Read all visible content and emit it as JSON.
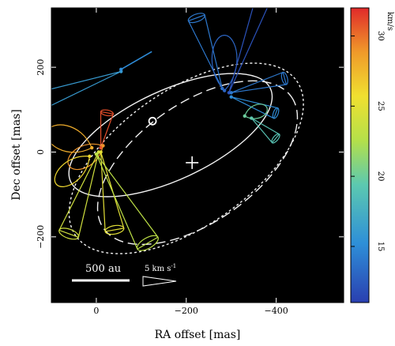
{
  "chart_data": {
    "type": "scatter",
    "xlabel": "RA offset [mas]",
    "ylabel": "Dec offset [mas]",
    "xlim": [
      100,
      -550
    ],
    "ylim": [
      -355,
      340
    ],
    "x_ticks": [
      {
        "value": 0,
        "label": "0"
      },
      {
        "value": -200,
        "label": "−200"
      },
      {
        "value": -400,
        "label": "−400"
      }
    ],
    "y_ticks": [
      {
        "value": 200,
        "label": "200"
      },
      {
        "value": 0,
        "label": "0"
      },
      {
        "value": -200,
        "label": "−200"
      }
    ],
    "colorbar": {
      "unit": "km/s",
      "min": 11,
      "max": 32,
      "ticks": [
        {
          "value": 30,
          "label": "30"
        },
        {
          "value": 25,
          "label": "25"
        },
        {
          "value": 20,
          "label": "20"
        },
        {
          "value": 15,
          "label": "15"
        }
      ]
    },
    "scale_bar": {
      "label": "500 au",
      "length_mas": 130
    },
    "velocity_key": {
      "label": "5 km s",
      "superscript": "-1"
    },
    "markers": [
      {
        "kind": "circle",
        "x": -125,
        "y": 73
      },
      {
        "kind": "plus",
        "x": -213,
        "y": -25
      }
    ],
    "ellipses": [
      {
        "style": "solid",
        "cx": -165,
        "cy": 40,
        "rx": 245,
        "ry": 105,
        "angle_deg": -25
      },
      {
        "style": "dashed",
        "cx": -225,
        "cy": -25,
        "rx": 255,
        "ry": 140,
        "angle_deg": -35
      },
      {
        "style": "dotted",
        "cx": -200,
        "cy": -15,
        "rx": 300,
        "ry": 160,
        "angle_deg": -35
      }
    ],
    "features": [
      {
        "x": -55,
        "y": 190,
        "vel": 16,
        "shape": "cone",
        "angle": 200,
        "len": 145,
        "width": 30
      },
      {
        "x": -55,
        "y": 195,
        "vel": 15,
        "shape": "line",
        "angle": 30,
        "len": 45
      },
      {
        "x": -280,
        "y": 150,
        "vel": 14,
        "shape": "cone",
        "angle": 110,
        "len": 95,
        "width": 22
      },
      {
        "x": -285,
        "y": 145,
        "vel": 13,
        "shape": "loop",
        "angle": 90,
        "len": 70,
        "width": 26
      },
      {
        "x": -295,
        "y": 140,
        "vel": 12,
        "shape": "cone",
        "angle": 70,
        "len": 120,
        "width": 18
      },
      {
        "x": -300,
        "y": 140,
        "vel": 14,
        "shape": "cone",
        "angle": 15,
        "len": 70,
        "width": 16
      },
      {
        "x": -300,
        "y": 130,
        "vel": 15,
        "shape": "cone",
        "angle": 340,
        "len": 60,
        "width": 14
      },
      {
        "x": -345,
        "y": 80,
        "vel": 19,
        "shape": "cone",
        "angle": 320,
        "len": 40,
        "width": 14
      },
      {
        "x": -330,
        "y": 85,
        "vel": 20,
        "shape": "loop",
        "angle": 20,
        "len": 30,
        "width": 14
      },
      {
        "x": -10,
        "y": 10,
        "vel": 31,
        "shape": "cone",
        "angle": 80,
        "len": 45,
        "width": 16
      },
      {
        "x": -15,
        "y": 15,
        "vel": 29,
        "shape": "loop",
        "angle": 210,
        "len": 50,
        "width": 22
      },
      {
        "x": 10,
        "y": 10,
        "vel": 28,
        "shape": "loop",
        "angle": 160,
        "len": 60,
        "width": 26
      },
      {
        "x": 15,
        "y": -10,
        "vel": 26,
        "shape": "loop",
        "angle": 220,
        "len": 55,
        "width": 22
      },
      {
        "x": -5,
        "y": 0,
        "vel": 24,
        "shape": "cone",
        "angle": 250,
        "len": 110,
        "width": 26
      },
      {
        "x": -10,
        "y": 0,
        "vel": 25,
        "shape": "cone",
        "angle": 280,
        "len": 100,
        "width": 24
      },
      {
        "x": 0,
        "y": -5,
        "vel": 23,
        "shape": "cone",
        "angle": 300,
        "len": 130,
        "width": 30
      }
    ]
  }
}
